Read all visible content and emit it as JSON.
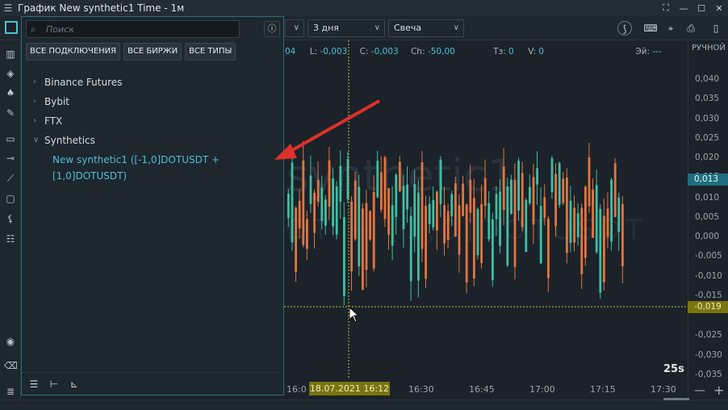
{
  "window": {
    "title": "График New synthetic1 Time - 1м",
    "menu_icon": "hamburger-icon",
    "controls": [
      "fullscreen-icon",
      "minimize-icon",
      "maximize-icon",
      "close-icon"
    ]
  },
  "toolbar": {
    "period": "3 дня",
    "chart_type": "Свеча",
    "right_label": "РУЧНОЙ"
  },
  "ohlc": {
    "partial_value": "04",
    "low_label": "L:",
    "low": "-0,003",
    "close_label": "C:",
    "close": "-0,003",
    "change_label": "Ch:",
    "change": "-50,00",
    "ts_label": "Тз:",
    "ts": "0",
    "vol_label": "V:",
    "vol": "0",
    "ei_label": "Эй:",
    "ei": "---"
  },
  "watermark": {
    "name": "synthetic1",
    "formula": "DT + [1,0]DOTUSDT"
  },
  "panel": {
    "search_placeholder": "Поиск",
    "filters": [
      "ВСЕ ПОДКЛЮЧЕНИЯ",
      "ВСЕ БИРЖИ",
      "ВСЕ ТИПЫ"
    ],
    "tree": [
      {
        "label": "Binance Futures",
        "expanded": false
      },
      {
        "label": "Bybit",
        "expanded": false
      },
      {
        "label": "FTX",
        "expanded": false
      },
      {
        "label": "Synthetics",
        "expanded": true
      }
    ],
    "selected_item": "New synthetic1  ([-1,0]DOTUSDT + [1,0]DOTUSDT)"
  },
  "price_axis": [
    "0,040",
    "0,035",
    "0,030",
    "0,025",
    "0,020",
    "0,015",
    "0,010",
    "0,005",
    "0,000",
    "-0,005",
    "-0,010",
    "-0,015",
    "-0,025",
    "-0,030",
    "-0,035"
  ],
  "current_price": "0,013",
  "cursor_price": "-0,019",
  "time_axis": [
    "16:0",
    "16:30",
    "16:45",
    "17:00",
    "17:15",
    "17:30"
  ],
  "cursor_date": "18.07.2021 16:12",
  "timer": "25s",
  "colors": {
    "up": "#3fbfa3",
    "down": "#e5743d",
    "accent": "#4ec1d6",
    "arrow": "#e0302a",
    "crosshair": "#c7c248"
  }
}
